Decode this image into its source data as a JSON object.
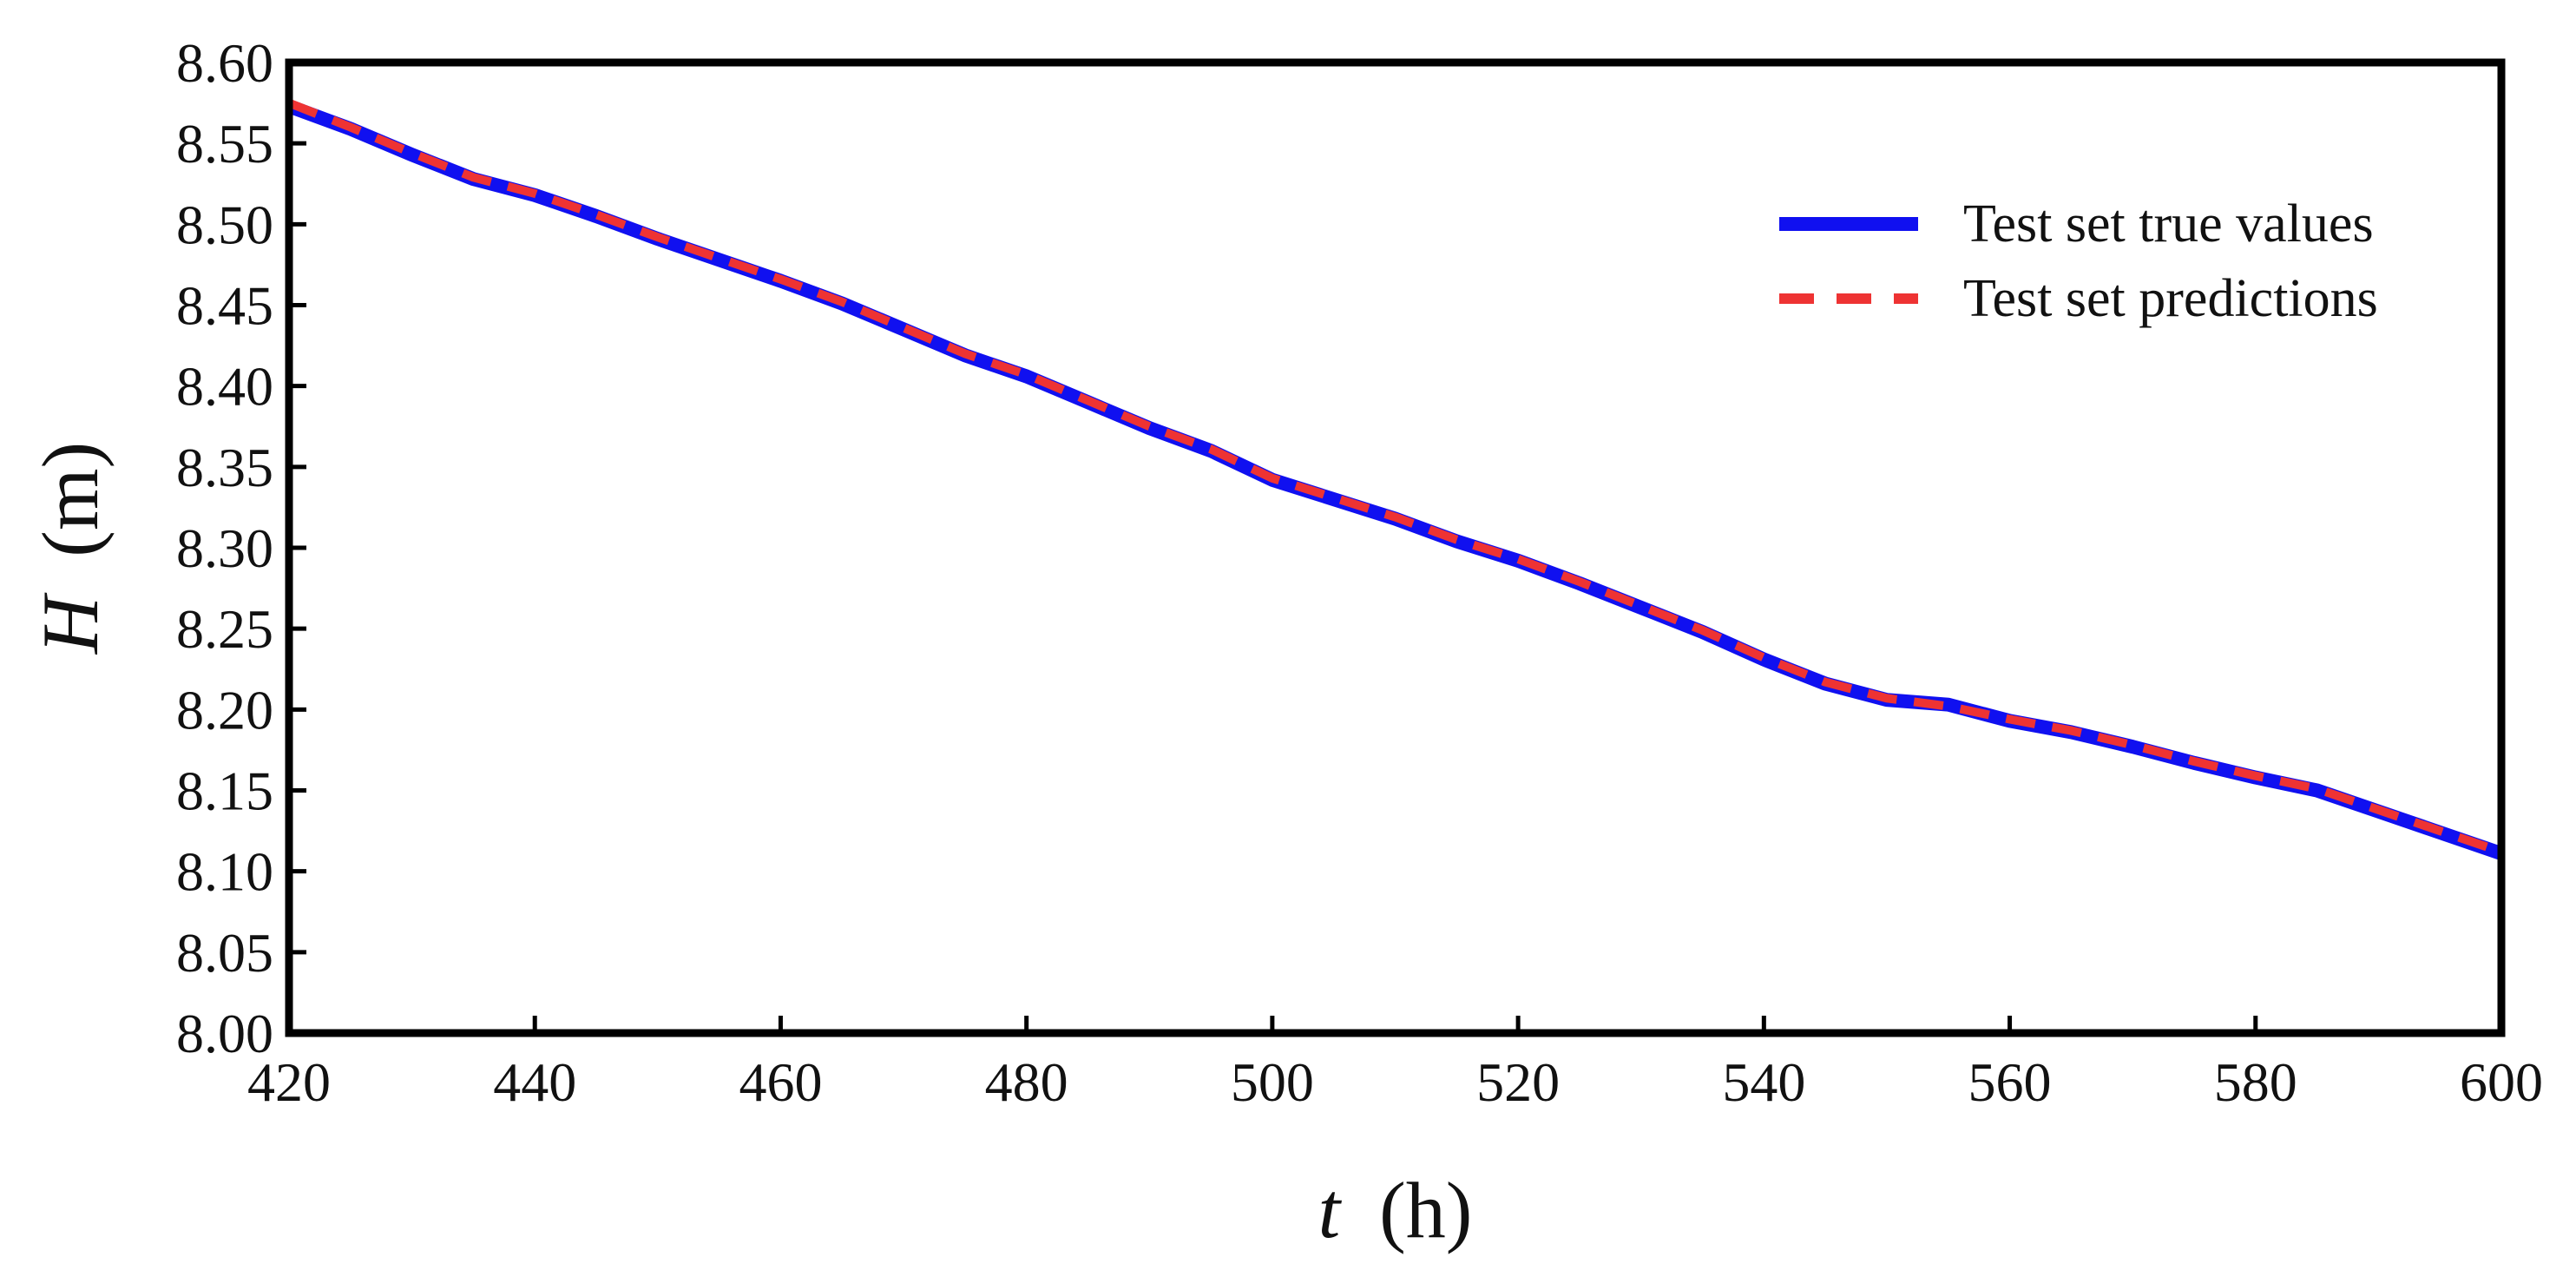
{
  "chart_data": {
    "type": "line",
    "title": "",
    "xlabel": {
      "symbol": "t",
      "unit": "(h)"
    },
    "ylabel": {
      "symbol": "H",
      "unit": "(m)"
    },
    "xlim": [
      420,
      600
    ],
    "ylim": [
      8.0,
      8.6
    ],
    "xticks": [
      "420",
      "440",
      "460",
      "480",
      "500",
      "520",
      "540",
      "560",
      "580",
      "600"
    ],
    "yticks": [
      "8.00",
      "8.05",
      "8.10",
      "8.15",
      "8.20",
      "8.25",
      "8.30",
      "8.35",
      "8.40",
      "8.45",
      "8.50",
      "8.55",
      "8.60"
    ],
    "grid": false,
    "legend_position": "top-right",
    "x": [
      420,
      425,
      430,
      435,
      440,
      445,
      450,
      455,
      460,
      465,
      470,
      475,
      480,
      485,
      490,
      495,
      500,
      505,
      510,
      515,
      520,
      525,
      530,
      535,
      540,
      545,
      550,
      555,
      560,
      565,
      570,
      575,
      580,
      585,
      590,
      595,
      600
    ],
    "series": [
      {
        "name": "Test set true values",
        "color": "#1010f0",
        "style": "solid",
        "values": [
          8.573,
          8.559,
          8.543,
          8.528,
          8.518,
          8.505,
          8.491,
          8.478,
          8.465,
          8.451,
          8.435,
          8.419,
          8.406,
          8.39,
          8.374,
          8.36,
          8.342,
          8.33,
          8.318,
          8.304,
          8.292,
          8.278,
          8.263,
          8.248,
          8.231,
          8.216,
          8.206,
          8.203,
          8.193,
          8.186,
          8.177,
          8.167,
          8.158,
          8.15,
          8.137,
          8.124,
          8.111
        ]
      },
      {
        "name": "Test set predictions",
        "color": "#ee3333",
        "style": "dashed",
        "values": [
          8.575,
          8.56,
          8.544,
          8.529,
          8.519,
          8.506,
          8.492,
          8.479,
          8.466,
          8.452,
          8.436,
          8.42,
          8.407,
          8.391,
          8.375,
          8.361,
          8.343,
          8.331,
          8.319,
          8.305,
          8.293,
          8.279,
          8.264,
          8.249,
          8.232,
          8.217,
          8.207,
          8.202,
          8.194,
          8.187,
          8.178,
          8.168,
          8.159,
          8.151,
          8.138,
          8.125,
          8.112
        ]
      }
    ]
  }
}
